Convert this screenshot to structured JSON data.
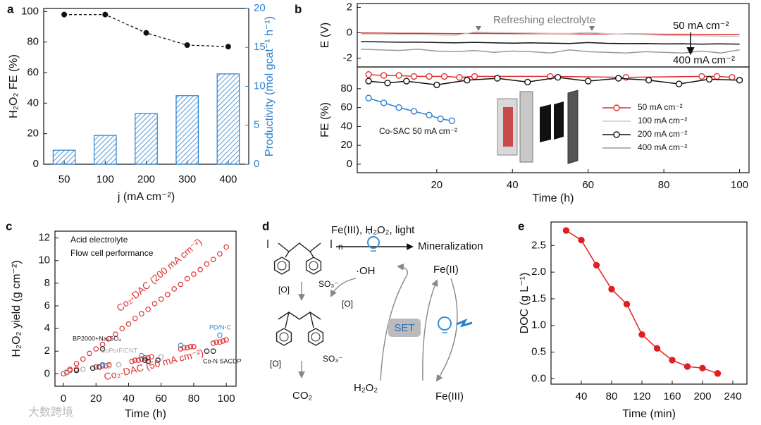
{
  "chart_data": [
    {
      "type": "combo",
      "panel": "a",
      "ylabel": "H₂O₂ FE (%)",
      "y2label": "Productivity (mol gcat⁻¹ h⁻¹)",
      "xlabel": "j (mA cm⁻²)",
      "categories": [
        "50",
        "100",
        "200",
        "300",
        "400"
      ],
      "ylim": [
        0,
        102
      ],
      "yticks": [
        0,
        20,
        40,
        60,
        80,
        100
      ],
      "y2lim": [
        0,
        20
      ],
      "y2ticks": [
        0,
        5,
        10,
        15,
        20
      ],
      "y2color": "#2a7fd0",
      "series": [
        {
          "color": "#111111",
          "values": [
            98,
            98,
            86,
            78,
            77
          ]
        },
        {
          "color": "#2a7fd0",
          "axis": "y2",
          "values": [
            1.8,
            3.7,
            6.5,
            8.8,
            11.6
          ]
        }
      ]
    },
    {
      "type": "line",
      "panel": "b",
      "ylabel": "E (V)",
      "xlim": [
        -1,
        102.5
      ],
      "ylim": [
        -2.7,
        2.3
      ],
      "yticks": [
        -2,
        0,
        2
      ],
      "x": [
        0,
        5,
        10,
        15,
        20,
        25,
        30,
        35,
        40,
        45,
        50,
        55,
        60,
        65,
        70,
        75,
        80,
        85,
        90,
        95,
        100
      ],
      "series": [
        {
          "name": "50 mA cm⁻²",
          "color": "#e03030",
          "values": [
            -0.02,
            -0.03,
            -0.05,
            -0.05,
            -0.06,
            -0.07,
            -0.05,
            -0.06,
            -0.07,
            -0.08,
            -0.08,
            -0.09,
            -0.1,
            -0.1,
            -0.1,
            -0.11,
            -0.12,
            -0.12,
            -0.13,
            -0.13,
            -0.14
          ]
        },
        {
          "name": "100 mA cm⁻²",
          "color": "#c8c8c8",
          "values": [
            -0.1,
            -0.12,
            -0.15,
            -0.15,
            -0.18,
            -0.2,
            0.05,
            0.02,
            0.0,
            -0.02,
            -0.05,
            -0.06,
            0.02,
            -0.08,
            -0.12,
            -0.15,
            -0.2,
            -0.22,
            -0.25,
            -0.28,
            -0.3
          ]
        },
        {
          "name": "200 mA cm⁻²",
          "color": "#111111",
          "values": [
            -0.7,
            -0.72,
            -0.75,
            -0.74,
            -0.78,
            -0.8,
            -0.76,
            -0.8,
            -0.82,
            -0.8,
            -0.83,
            -0.85,
            -0.78,
            -0.84,
            -0.86,
            -0.85,
            -0.88,
            -0.87,
            -0.9,
            -0.88,
            -0.9
          ]
        },
        {
          "name": "400 mA cm⁻²",
          "color": "#999999",
          "values": [
            -1.3,
            -1.35,
            -1.4,
            -1.3,
            -1.45,
            -1.5,
            -1.4,
            -1.55,
            -1.45,
            -1.5,
            -1.6,
            -1.35,
            -1.5,
            -1.55,
            -1.6,
            -1.5,
            -1.55,
            -1.6,
            -1.45,
            -1.6,
            -1.35
          ]
        }
      ],
      "annotations": [
        "Refreshing electrolyte",
        "50 mA cm⁻²",
        "400 mA cm⁻²"
      ]
    },
    {
      "type": "line",
      "ylabel": "FE (%)",
      "xlabel": "Time (h)",
      "xlim": [
        -1,
        102.5
      ],
      "ylim": [
        -9,
        103
      ],
      "yticks": [
        0,
        20,
        40,
        60,
        80
      ],
      "xticks": [
        20,
        40,
        60,
        80,
        100
      ],
      "series": [
        {
          "color": "#e03030",
          "marker": "open-circle",
          "x": [
            2,
            6,
            10,
            14,
            18,
            22,
            26,
            30,
            50,
            70,
            90,
            94,
            98
          ],
          "values": [
            95,
            94,
            94,
            93,
            93,
            93,
            92,
            93,
            93,
            92,
            93,
            93,
            92
          ]
        },
        {
          "color": "#111111",
          "marker": "open-circle",
          "x": [
            2,
            7,
            12,
            20,
            28,
            36,
            44,
            52,
            60,
            68,
            76,
            84,
            92,
            100
          ],
          "values": [
            88,
            86,
            88,
            84,
            89,
            91,
            87,
            92,
            88,
            91,
            89,
            85,
            90,
            89
          ]
        },
        {
          "name": "Co-SAC 50 mA cm⁻²",
          "color": "#2a7fd0",
          "marker": "open-circle",
          "x": [
            2,
            6,
            10,
            14,
            18,
            21,
            24
          ],
          "values": [
            70,
            65,
            60,
            56,
            52,
            48,
            46
          ]
        }
      ]
    },
    {
      "type": "scatter",
      "panel": "c",
      "ylabel": "H₂O₂ yield (g cm⁻²)",
      "xlabel": "Time (h)",
      "xlim": [
        -5.2,
        106
      ],
      "ylim": [
        -1.1,
        12.6
      ],
      "xticks": [
        0,
        20,
        40,
        60,
        80,
        100
      ],
      "yticks": [
        0,
        2,
        4,
        6,
        8,
        10,
        12
      ],
      "annotations": [
        "Acid electrolyte",
        "Flow cell performance"
      ],
      "series": [
        {
          "name": "Co₂-DAC (200 mA cm⁻²)",
          "color": "#e03030",
          "x": [
            0,
            4,
            8,
            12,
            16,
            20,
            24,
            28,
            32,
            36,
            40,
            44,
            48,
            52,
            56,
            60,
            64,
            68,
            72,
            76,
            80,
            84,
            88,
            92,
            96,
            100
          ],
          "values": [
            0,
            0.4,
            0.9,
            1.3,
            1.8,
            2.2,
            2.6,
            3.1,
            3.5,
            4.0,
            4.4,
            4.9,
            5.3,
            5.7,
            6.2,
            6.6,
            7.0,
            7.5,
            7.9,
            8.4,
            8.8,
            9.2,
            9.7,
            10.1,
            10.6,
            11.2
          ]
        },
        {
          "name": "Co₂-DAC (50 mA cm⁻²)",
          "color": "#e03030",
          "x": [
            2,
            4,
            8,
            20,
            22,
            24,
            26,
            28,
            42,
            44,
            46,
            48,
            50,
            52,
            54,
            72,
            74,
            76,
            78,
            80,
            92,
            94,
            96,
            98,
            100
          ],
          "values": [
            0.1,
            0.3,
            0.4,
            0.6,
            0.6,
            0.7,
            0.7,
            0.8,
            1.1,
            1.2,
            1.2,
            1.3,
            1.4,
            1.4,
            1.5,
            2.2,
            2.3,
            2.3,
            2.4,
            2.4,
            2.7,
            2.8,
            2.8,
            2.9,
            3.0
          ]
        },
        {
          "name": "BP2000+Na₂SO₄",
          "color": "#222222",
          "x": [
            8,
            18,
            22,
            24,
            50
          ],
          "values": [
            0.3,
            0.5,
            0.6,
            2.2,
            1.2
          ]
        },
        {
          "name": "CoPorF/CNT",
          "color": "#aaaaaa",
          "x": [
            2,
            12,
            28,
            34,
            60
          ],
          "values": [
            0.2,
            0.4,
            0.7,
            0.8,
            1.5
          ]
        },
        {
          "name": "PD/N-C",
          "color": "#3a8fd4",
          "x": [
            24,
            48,
            72,
            96
          ],
          "values": [
            0.8,
            1.6,
            2.5,
            3.4
          ]
        },
        {
          "name": "Co-N SACDP",
          "color": "#222222",
          "x": [
            52,
            58,
            88,
            92
          ],
          "values": [
            1.1,
            1.2,
            2.0,
            2.0
          ]
        }
      ]
    },
    {
      "type": "line",
      "panel": "e",
      "ylabel": "DOC (g L⁻¹)",
      "xlabel": "Time (min)",
      "xlim": [
        0,
        258.6
      ],
      "ylim": [
        -0.1,
        2.94
      ],
      "xticks": [
        40,
        80,
        120,
        160,
        200,
        240
      ],
      "yticks": [
        {
          "value": 0,
          "label": "0.0"
        },
        0.5,
        {
          "value": 1,
          "label": "1.0"
        },
        1.5,
        {
          "value": 2,
          "label": "2.0"
        },
        2.5
      ],
      "series": [
        {
          "color": "#e02020",
          "marker": "filled-circle",
          "x": [
            20,
            40,
            60,
            80,
            100,
            120,
            140,
            160,
            180,
            200,
            220
          ],
          "values": [
            2.78,
            2.6,
            2.13,
            1.68,
            1.4,
            0.83,
            0.57,
            0.35,
            0.23,
            0.2,
            0.1
          ]
        }
      ]
    }
  ],
  "diagram": {
    "panel": "d",
    "reaction": "Fe(III), H₂O₂, light",
    "product": "Mineralization",
    "n": "n",
    "oh": "·OH",
    "fe2": "Fe(II)",
    "set": "SET",
    "h2o2": "H₂O₂",
    "fe3": "Fe(III)",
    "co2": "CO₂",
    "oxygen": [
      "[O]",
      "[O]",
      "[O]"
    ],
    "sulfonate": [
      "SO₃⁻",
      "SO₃⁻"
    ]
  },
  "watermark": "大数跨境"
}
